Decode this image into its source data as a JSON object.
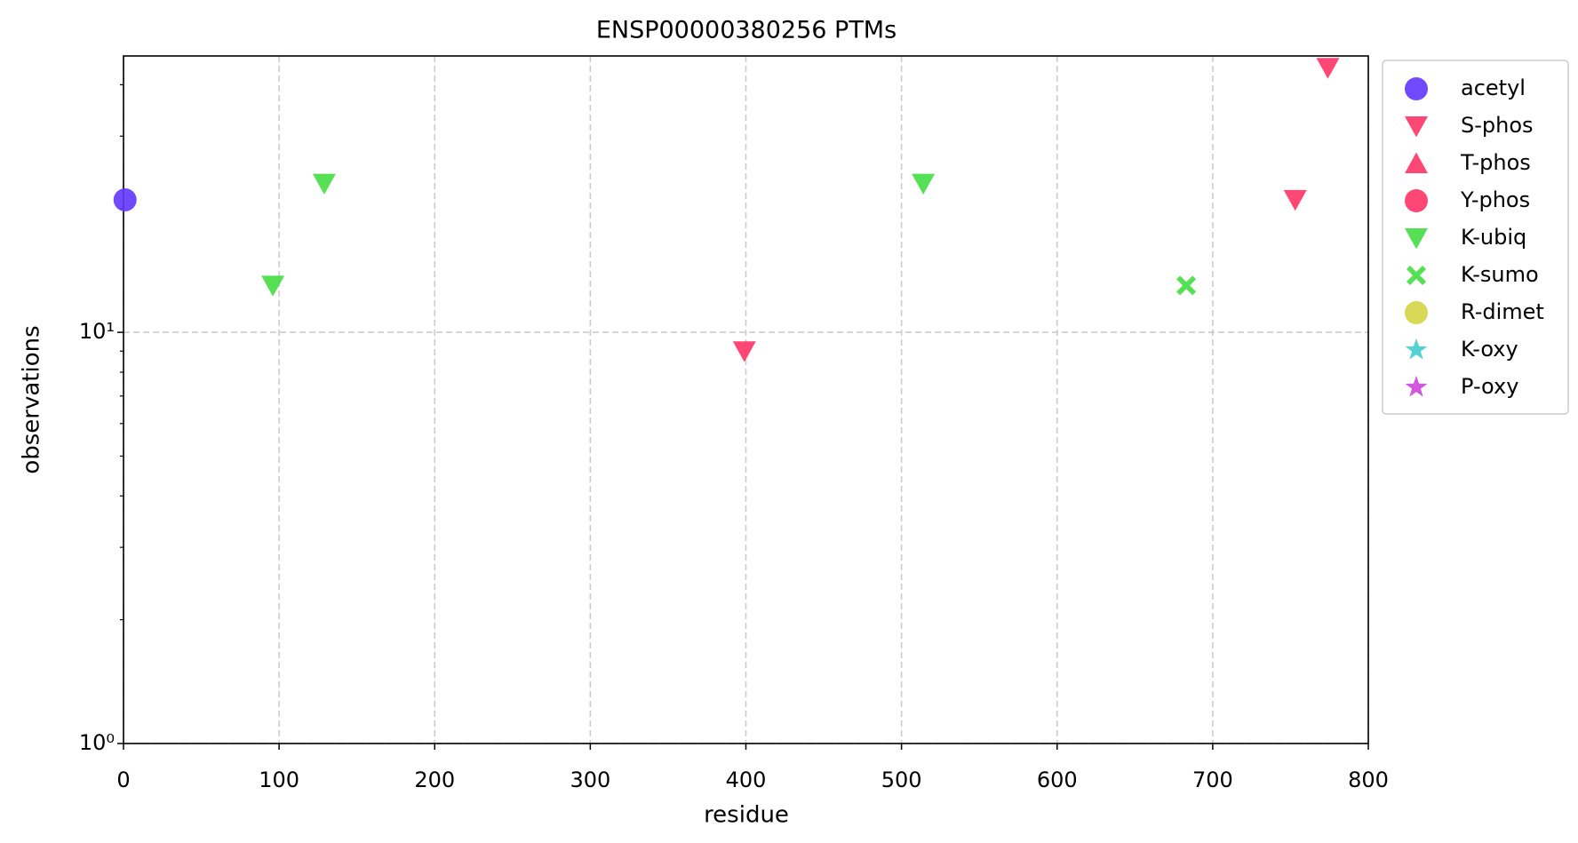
{
  "chart_data": {
    "type": "scatter",
    "title": "ENSP00000380256 PTMs",
    "x_label": "residue",
    "y_label": "observations",
    "xlim": [
      0,
      800
    ],
    "xticks": [
      0,
      100,
      200,
      300,
      400,
      500,
      600,
      700,
      800
    ],
    "ylim": [
      1,
      47
    ],
    "log_y": true,
    "yticks": [
      {
        "value": 1,
        "label": "10⁰"
      },
      {
        "value": 10,
        "label": "10¹"
      }
    ],
    "yminorticks": [
      2,
      3,
      4,
      5,
      6,
      7,
      8,
      9,
      20,
      30,
      40
    ],
    "grid": true,
    "legend": "outside right",
    "series": [
      {
        "name": "acetyl",
        "color": "#6236ff",
        "marker": "circle",
        "x": [
          1
        ],
        "values": [
          21
        ]
      },
      {
        "name": "S-phos",
        "color": "#ff3366",
        "marker": "triangle-down",
        "x": [
          399,
          753,
          774
        ],
        "values": [
          9,
          21,
          44
        ]
      },
      {
        "name": "T-phos",
        "color": "#ff3366",
        "marker": "triangle-up",
        "x": [],
        "values": []
      },
      {
        "name": "Y-phos",
        "color": "#ff3366",
        "marker": "circle",
        "x": [],
        "values": []
      },
      {
        "name": "K-ubiq",
        "color": "#44dd44",
        "marker": "triangle-down",
        "x": [
          96,
          129,
          514
        ],
        "values": [
          13,
          23,
          23
        ]
      },
      {
        "name": "K-sumo",
        "color": "#44dd44",
        "marker": "x",
        "x": [
          683
        ],
        "values": [
          13
        ]
      },
      {
        "name": "R-dimet",
        "color": "#d4d444",
        "marker": "circle",
        "x": [],
        "values": []
      },
      {
        "name": "K-oxy",
        "color": "#44cccc",
        "marker": "star",
        "x": [],
        "values": []
      },
      {
        "name": "P-oxy",
        "color": "#cc44dd",
        "marker": "star",
        "x": [],
        "values": []
      }
    ]
  }
}
